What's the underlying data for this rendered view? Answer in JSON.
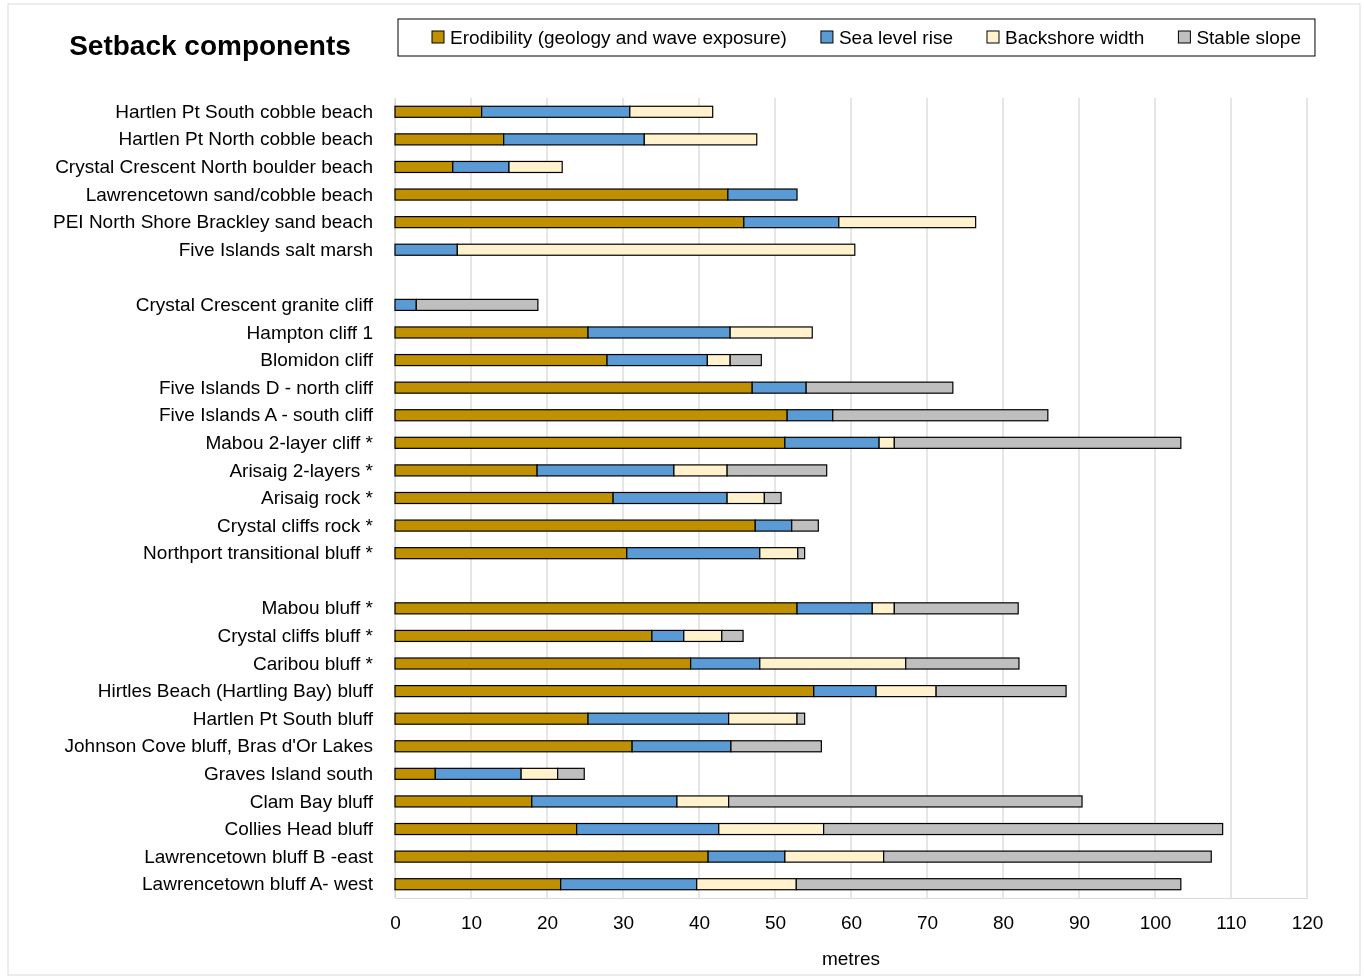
{
  "chart_data": {
    "type": "bar",
    "orientation": "horizontal",
    "stacked": true,
    "title": "Setback components",
    "xlabel": "metres",
    "categories": [
      "Hartlen Pt South cobble beach",
      "Hartlen Pt North cobble beach",
      "Crystal Crescent North boulder beach",
      "Lawrencetown sand/cobble beach",
      "PEI  North Shore Brackley sand beach",
      "Five Islands salt marsh",
      null,
      "Crystal Crescent granite cliff",
      "Hampton cliff 1",
      "Blomidon cliff",
      "Five Islands D - north  cliff",
      "Five Islands A - south cliff",
      "Mabou 2-layer cliff *",
      "Arisaig 2-layers *",
      "Arisaig rock *",
      "Crystal cliffs rock *",
      "Northport transitional bluff *",
      null,
      "Mabou bluff *",
      "Crystal cliffs bluff *",
      "Caribou bluff *",
      "Hirtles Beach (Hartling Bay) bluff",
      "Hartlen Pt South bluff",
      "Johnson Cove bluff, Bras d'Or Lakes",
      "Graves Island south",
      "Clam Bay bluff",
      "Collies Head bluff",
      "Lawrencetown bluff B -east",
      "Lawrencetown bluff A- west"
    ],
    "series": [
      {
        "name": "Erodibility (geology and wave exposure)",
        "color": "#bf9000",
        "values": [
          11.4,
          14.3,
          7.6,
          43.8,
          45.9,
          0,
          null,
          0,
          25.4,
          27.9,
          47.0,
          51.6,
          51.3,
          18.7,
          28.7,
          47.4,
          30.5,
          null,
          52.9,
          33.8,
          38.9,
          55.1,
          25.4,
          31.2,
          5.3,
          18.0,
          23.9,
          41.2,
          21.8
        ]
      },
      {
        "name": "Sea level rise",
        "color": "#5b9bd5",
        "values": [
          19.5,
          18.5,
          7.4,
          9.1,
          12.5,
          8.2,
          null,
          2.8,
          18.7,
          13.2,
          7.1,
          6.0,
          12.4,
          18.0,
          15.0,
          4.8,
          17.5,
          null,
          9.9,
          4.2,
          9.1,
          8.2,
          18.5,
          13.0,
          11.3,
          19.1,
          18.7,
          10.1,
          17.9
        ]
      },
      {
        "name": "Backshore width",
        "color": "#fff2cc",
        "values": [
          10.9,
          14.8,
          7.0,
          0,
          18.0,
          52.3,
          null,
          0,
          10.8,
          3.0,
          0,
          0,
          2.0,
          7.0,
          4.9,
          0,
          5.0,
          null,
          2.9,
          5.0,
          19.2,
          7.9,
          9.0,
          0,
          4.8,
          6.8,
          13.8,
          13.0,
          13.1
        ]
      },
      {
        "name": "Stable slope",
        "color": "#bfbfbf",
        "values": [
          0,
          0,
          0,
          0,
          0,
          0,
          null,
          16.0,
          0,
          4.1,
          19.3,
          28.3,
          37.7,
          13.1,
          2.2,
          3.5,
          0.9,
          null,
          16.3,
          2.8,
          14.9,
          17.1,
          1.0,
          11.9,
          3.5,
          46.5,
          52.5,
          43.1,
          50.6
        ]
      }
    ],
    "xlim": [
      0,
      120
    ],
    "xticks": [
      0,
      10,
      20,
      30,
      40,
      50,
      60,
      70,
      80,
      90,
      100,
      110,
      120
    ],
    "grid": "x",
    "legend": "top"
  }
}
